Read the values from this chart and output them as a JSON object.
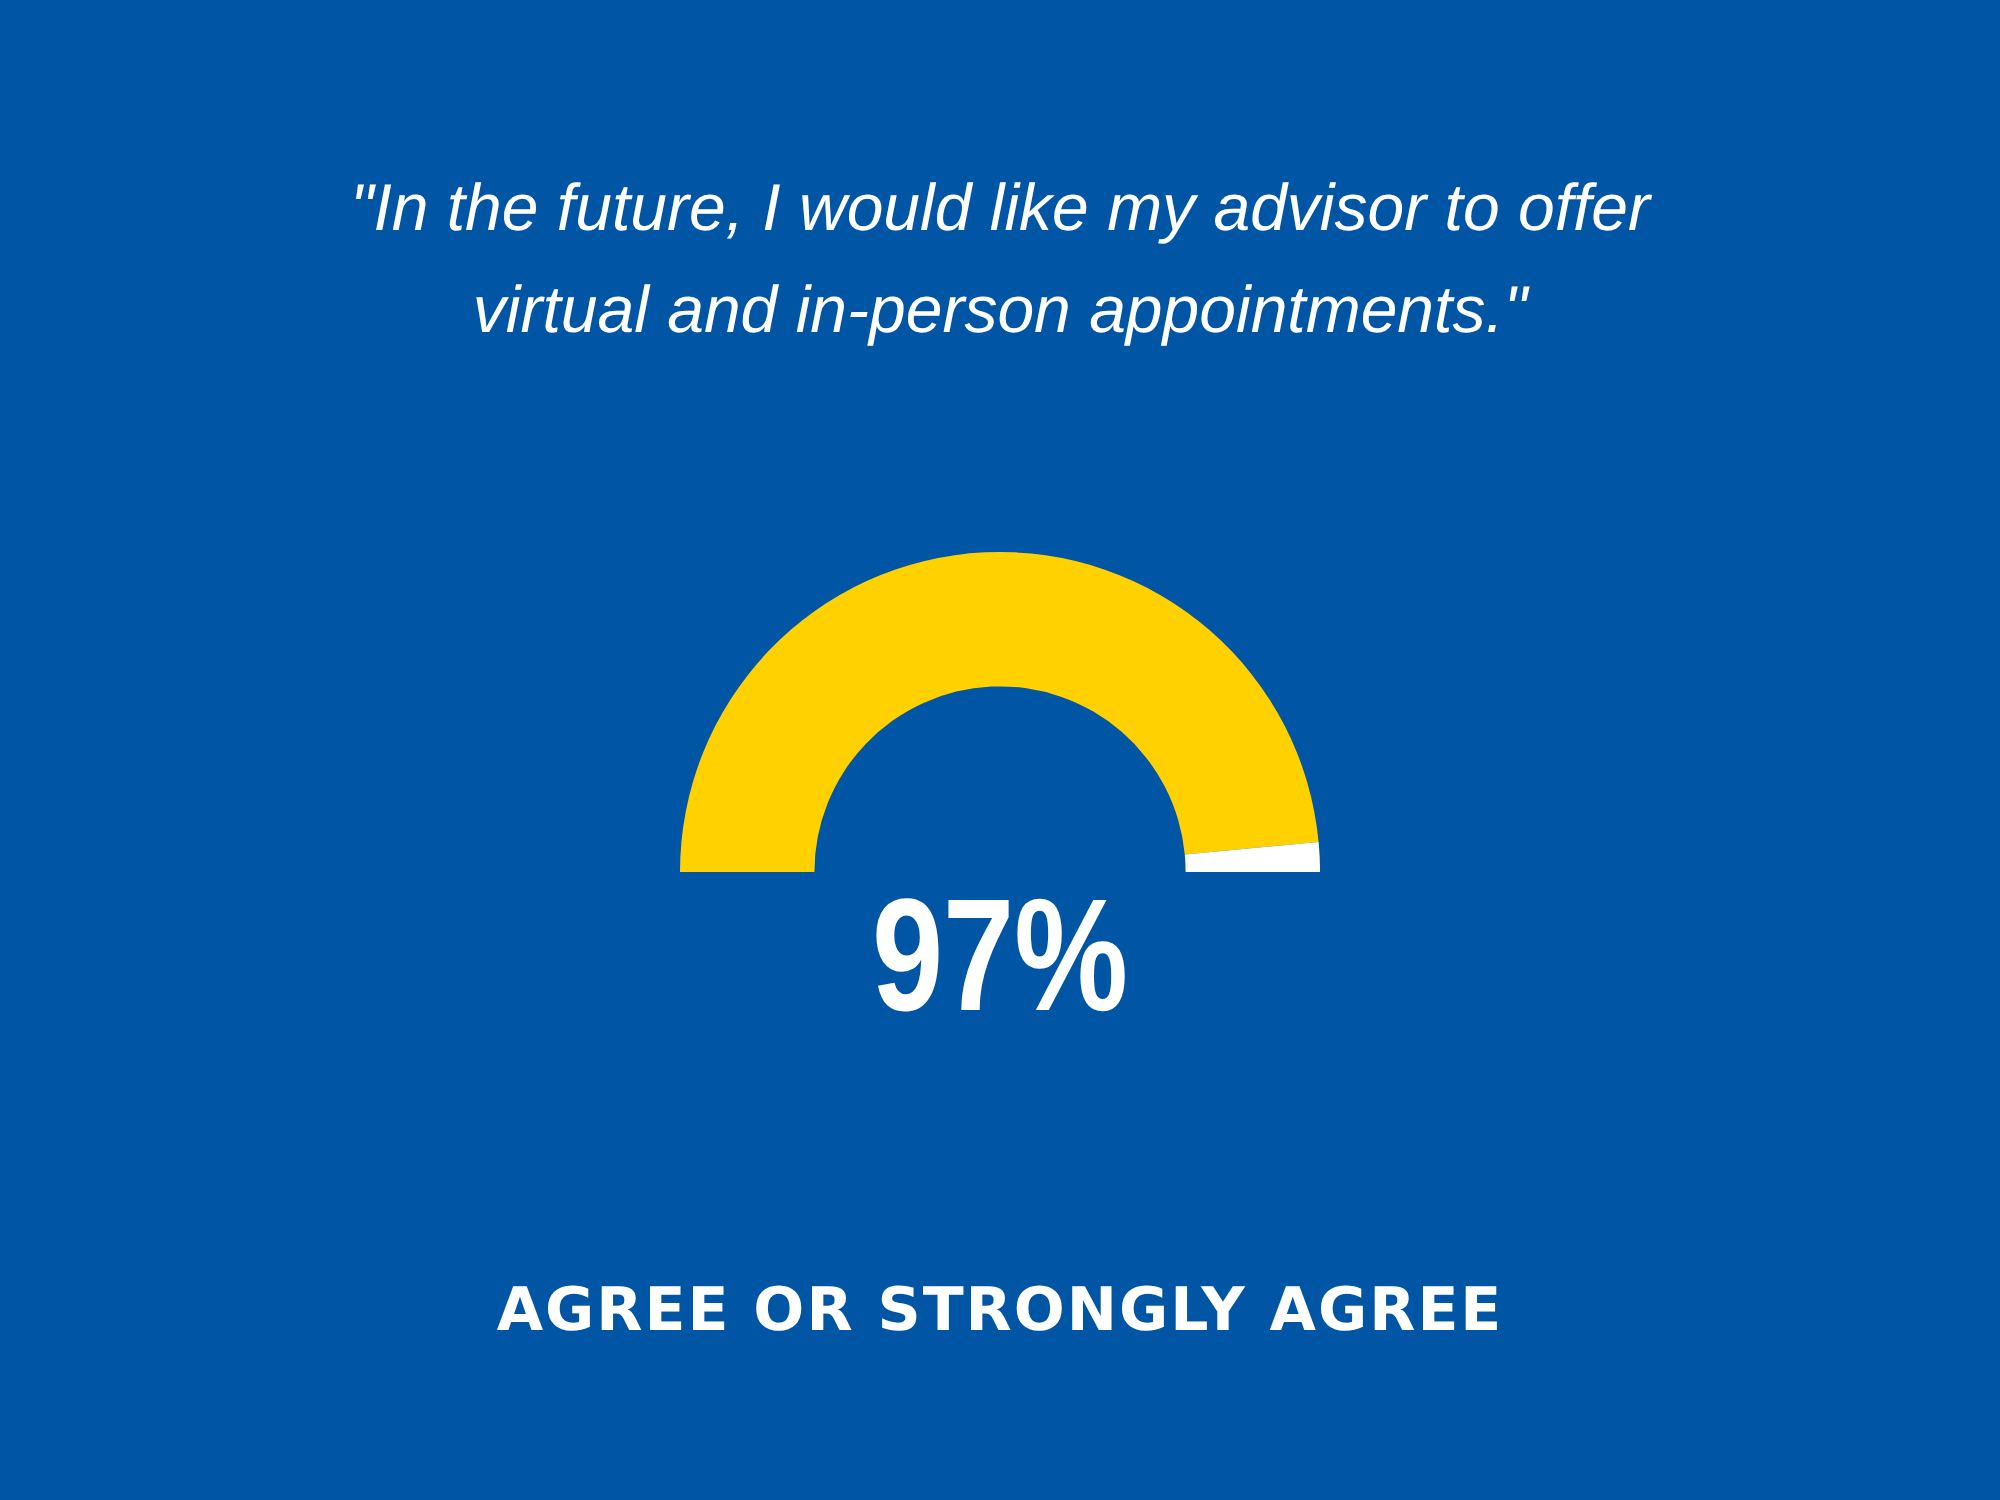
{
  "chart_data": {
    "type": "donut",
    "title": "\"In the future, I would like my advisor to offer virtual and in-person appointments.\"",
    "categories": [
      null,
      null
    ],
    "values": [
      97,
      3
    ],
    "colors": [
      "#ffd100",
      "#ffffff"
    ],
    "annotations": [
      "97%",
      "AGREE OR STRONGLY AGREE"
    ]
  }
}
